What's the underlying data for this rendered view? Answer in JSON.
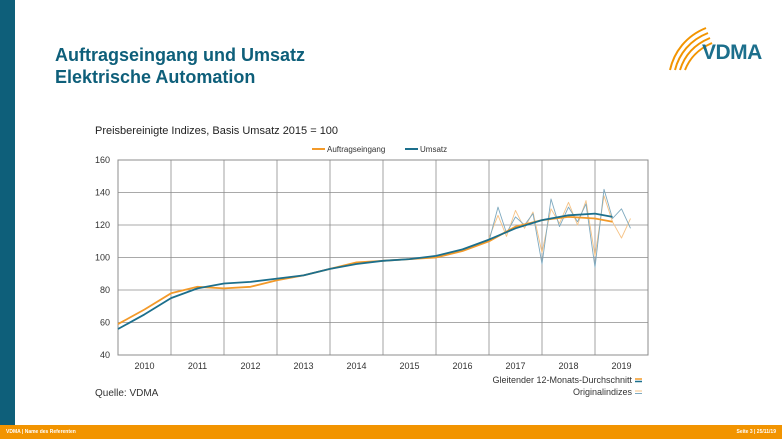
{
  "header": {
    "title_line1": "Auftragseingang und Umsatz",
    "title_line2": "Elektrische Automation"
  },
  "logo": {
    "text": "VDMA"
  },
  "colors": {
    "accent_blue": "#0e5f7a",
    "accent_orange": "#f29400",
    "series_orders": "#f39a2a",
    "series_revenue": "#1c6f8c",
    "original_orders": "#f6c386",
    "original_revenue": "#7ea9bf"
  },
  "chart_data": {
    "type": "line",
    "subtitle": "Preisbereinigte Indizes, Basis Umsatz 2015 = 100",
    "ylim": [
      40,
      160
    ],
    "yticks": [
      "160",
      "140",
      "120",
      "100",
      "80",
      "60",
      "40"
    ],
    "xlim": [
      2009.5,
      2019.5
    ],
    "x_tick_labels": [
      "2010",
      "2011",
      "2012",
      "2013",
      "2014",
      "2015",
      "2016",
      "2017",
      "2018",
      "2019"
    ],
    "grid": true,
    "legend_position": "top",
    "legend_bottom": {
      "smoothed_label": "Gleitender 12-Monats-Durchschnitt",
      "original_label": "Originalindizes"
    },
    "series": [
      {
        "name": "Auftragseingang",
        "kind": "smoothed",
        "x": [
          2009.5,
          2010.0,
          2010.5,
          2011.0,
          2011.5,
          2012.0,
          2012.5,
          2013.0,
          2013.5,
          2014.0,
          2014.5,
          2015.0,
          2015.5,
          2016.0,
          2016.5,
          2017.0,
          2017.5,
          2018.0,
          2018.5,
          2018.83
        ],
        "values": [
          59,
          68,
          78,
          82,
          81,
          82,
          86,
          89,
          93,
          97,
          98,
          99,
          100,
          104,
          110,
          119,
          123,
          125,
          124,
          122
        ]
      },
      {
        "name": "Umsatz",
        "kind": "smoothed",
        "x": [
          2009.5,
          2010.0,
          2010.5,
          2011.0,
          2011.5,
          2012.0,
          2012.5,
          2013.0,
          2013.5,
          2014.0,
          2014.5,
          2015.0,
          2015.5,
          2016.0,
          2016.5,
          2017.0,
          2017.5,
          2018.0,
          2018.5,
          2018.83
        ],
        "values": [
          56,
          65,
          75,
          81,
          84,
          85,
          87,
          89,
          93,
          96,
          98,
          99,
          101,
          105,
          111,
          118,
          123,
          126,
          127,
          125
        ]
      },
      {
        "name": "Auftragseingang",
        "kind": "original",
        "x": [
          2016.5,
          2016.67,
          2016.83,
          2017.0,
          2017.17,
          2017.33,
          2017.5,
          2017.67,
          2017.83,
          2018.0,
          2018.17,
          2018.33,
          2018.5,
          2018.67,
          2018.83,
          2019.0,
          2019.17
        ],
        "values": [
          112,
          126,
          113,
          129,
          118,
          128,
          103,
          130,
          121,
          134,
          120,
          135,
          101,
          138,
          122,
          112,
          124
        ]
      },
      {
        "name": "Umsatz",
        "kind": "original",
        "x": [
          2016.5,
          2016.67,
          2016.83,
          2017.0,
          2017.17,
          2017.33,
          2017.5,
          2017.67,
          2017.83,
          2018.0,
          2018.17,
          2018.33,
          2018.5,
          2018.67,
          2018.83,
          2019.0,
          2019.17
        ],
        "values": [
          110,
          131,
          115,
          125,
          120,
          127,
          96,
          136,
          119,
          131,
          122,
          133,
          94,
          142,
          124,
          130,
          118
        ]
      }
    ]
  },
  "source": "Quelle: VDMA",
  "footer": {
    "left": "VDMA | Name des Referenten",
    "right": "Seite 3 | 25/11/19"
  }
}
